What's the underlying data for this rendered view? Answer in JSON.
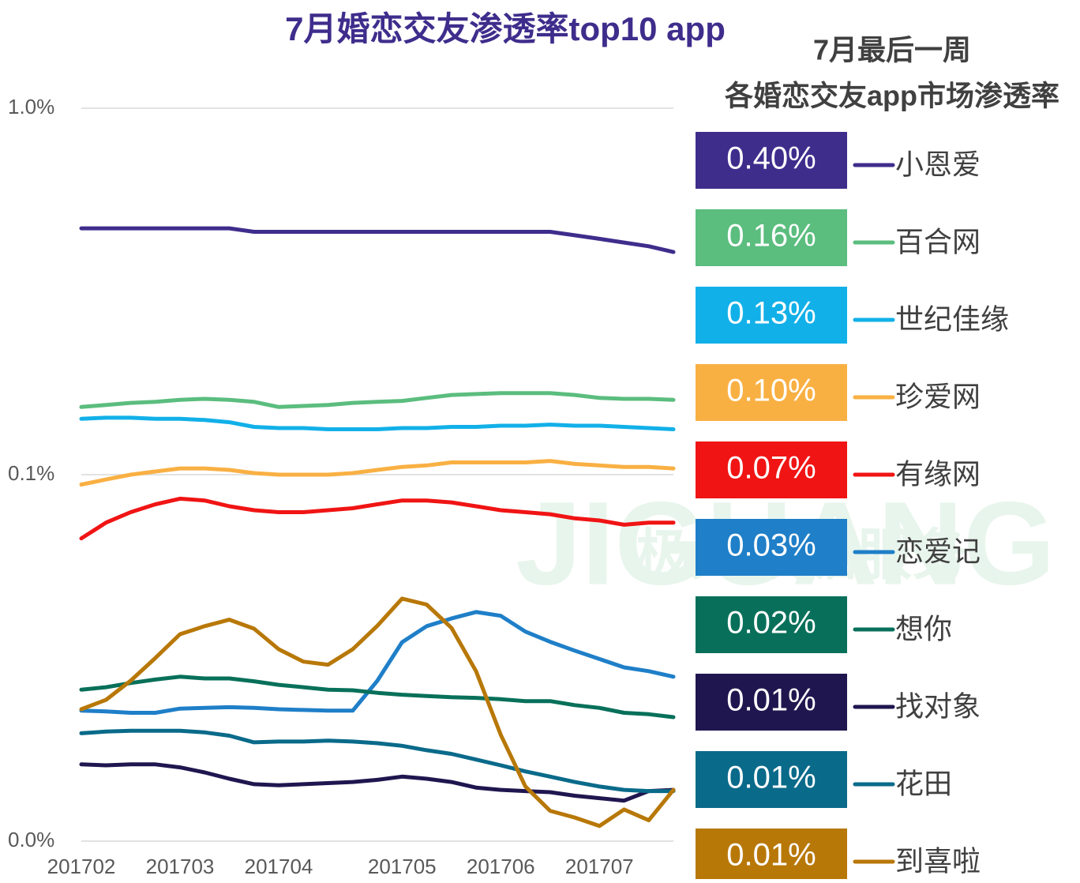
{
  "chart_data": {
    "type": "line",
    "title": "7月婚恋交友渗透率top10 app",
    "legend_title": "7月最后一周",
    "legend_subtitle": "各婚恋交友app市场渗透率",
    "watermark": "JIGUANG",
    "watermark_sub": "极光数据服务",
    "log_scale": true,
    "grid": true,
    "legend": "right",
    "categories": [
      "201702",
      null,
      null,
      null,
      "201703",
      null,
      null,
      null,
      "201704",
      null,
      null,
      null,
      null,
      "201705",
      null,
      null,
      null,
      "201706",
      null,
      null,
      null,
      "201707",
      null,
      null,
      null
    ],
    "ylim": [
      0.01,
      1
    ],
    "yticks": [
      {
        "value": 0.01,
        "label": "0.0%"
      },
      {
        "value": 0.1,
        "label": "0.1%"
      },
      {
        "value": 1,
        "label": "1.0%"
      }
    ],
    "series": [
      {
        "name": "小恩爱",
        "color": "#3f2d8c",
        "last_label": "0.40%",
        "values": [
          0.47,
          0.47,
          0.47,
          0.47,
          0.47,
          0.47,
          0.47,
          0.46,
          0.46,
          0.46,
          0.46,
          0.46,
          0.46,
          0.46,
          0.46,
          0.46,
          0.46,
          0.46,
          0.46,
          0.46,
          0.45,
          0.44,
          0.43,
          0.42,
          0.405
        ]
      },
      {
        "name": "百合网",
        "color": "#5bbd7e",
        "last_label": "0.16%",
        "values": [
          0.153,
          0.155,
          0.157,
          0.158,
          0.16,
          0.161,
          0.16,
          0.158,
          0.153,
          0.154,
          0.155,
          0.157,
          0.158,
          0.159,
          0.162,
          0.165,
          0.166,
          0.167,
          0.167,
          0.167,
          0.165,
          0.162,
          0.161,
          0.161,
          0.16
        ]
      },
      {
        "name": "世纪佳缘",
        "color": "#12b0e8",
        "last_label": "0.13%",
        "values": [
          0.142,
          0.143,
          0.143,
          0.142,
          0.142,
          0.141,
          0.139,
          0.135,
          0.134,
          0.134,
          0.133,
          0.133,
          0.133,
          0.134,
          0.134,
          0.135,
          0.135,
          0.136,
          0.136,
          0.137,
          0.136,
          0.136,
          0.135,
          0.134,
          0.133
        ]
      },
      {
        "name": "珍爱网",
        "color": "#f9b043",
        "last_label": "0.10%",
        "values": [
          0.094,
          0.097,
          0.1,
          0.102,
          0.104,
          0.104,
          0.103,
          0.101,
          0.1,
          0.1,
          0.1,
          0.101,
          0.103,
          0.105,
          0.106,
          0.108,
          0.108,
          0.108,
          0.108,
          0.109,
          0.107,
          0.106,
          0.105,
          0.105,
          0.104
        ]
      },
      {
        "name": "有缘网",
        "color": "#f01414",
        "last_label": "0.07%",
        "values": [
          0.067,
          0.074,
          0.079,
          0.083,
          0.086,
          0.085,
          0.082,
          0.08,
          0.079,
          0.079,
          0.08,
          0.081,
          0.083,
          0.085,
          0.085,
          0.084,
          0.082,
          0.08,
          0.079,
          0.078,
          0.076,
          0.075,
          0.073,
          0.074,
          0.074
        ]
      },
      {
        "name": "恋爱记",
        "color": "#1f7fc8",
        "last_label": "0.03%",
        "values": [
          0.0227,
          0.0226,
          0.0224,
          0.0224,
          0.023,
          0.0231,
          0.0232,
          0.0231,
          0.0229,
          0.0228,
          0.0227,
          0.0227,
          0.0274,
          0.0349,
          0.0386,
          0.0405,
          0.0422,
          0.0412,
          0.0373,
          0.035,
          0.0331,
          0.0314,
          0.0298,
          0.0291,
          0.0281
        ]
      },
      {
        "name": "想你",
        "color": "#08705a",
        "last_label": "0.02%",
        "values": [
          0.0259,
          0.0263,
          0.027,
          0.0276,
          0.0281,
          0.0278,
          0.0278,
          0.0273,
          0.0267,
          0.0263,
          0.0259,
          0.0258,
          0.0254,
          0.0251,
          0.0249,
          0.0247,
          0.0246,
          0.0244,
          0.0241,
          0.0241,
          0.0235,
          0.0231,
          0.0224,
          0.0222,
          0.0218
        ]
      },
      {
        "name": "找对象",
        "color": "#20164f",
        "last_label": "0.01%",
        "values": [
          0.0162,
          0.0161,
          0.0162,
          0.0162,
          0.0159,
          0.0154,
          0.0148,
          0.0143,
          0.0142,
          0.0143,
          0.0144,
          0.0145,
          0.0147,
          0.015,
          0.0148,
          0.0145,
          0.014,
          0.0138,
          0.0137,
          0.0136,
          0.0133,
          0.0131,
          0.0129,
          0.0137,
          0.0138
        ]
      },
      {
        "name": "花田",
        "color": "#0a6a8a",
        "last_label": "0.01%",
        "values": [
          0.0197,
          0.0199,
          0.02,
          0.02,
          0.02,
          0.0198,
          0.0194,
          0.0186,
          0.0187,
          0.0187,
          0.0188,
          0.0187,
          0.0185,
          0.0182,
          0.0177,
          0.0173,
          0.0167,
          0.0161,
          0.0155,
          0.015,
          0.0145,
          0.0141,
          0.0138,
          0.0137,
          0.0137
        ]
      },
      {
        "name": "到喜啦",
        "color": "#b87808",
        "last_label": "0.01%",
        "values": [
          0.0229,
          0.0243,
          0.0274,
          0.0316,
          0.0367,
          0.0386,
          0.0402,
          0.038,
          0.0334,
          0.0309,
          0.0303,
          0.0334,
          0.0387,
          0.0459,
          0.0442,
          0.0382,
          0.0291,
          0.0195,
          0.0141,
          0.0121,
          0.0116,
          0.011,
          0.0122,
          0.0114,
          0.0138
        ]
      }
    ]
  }
}
